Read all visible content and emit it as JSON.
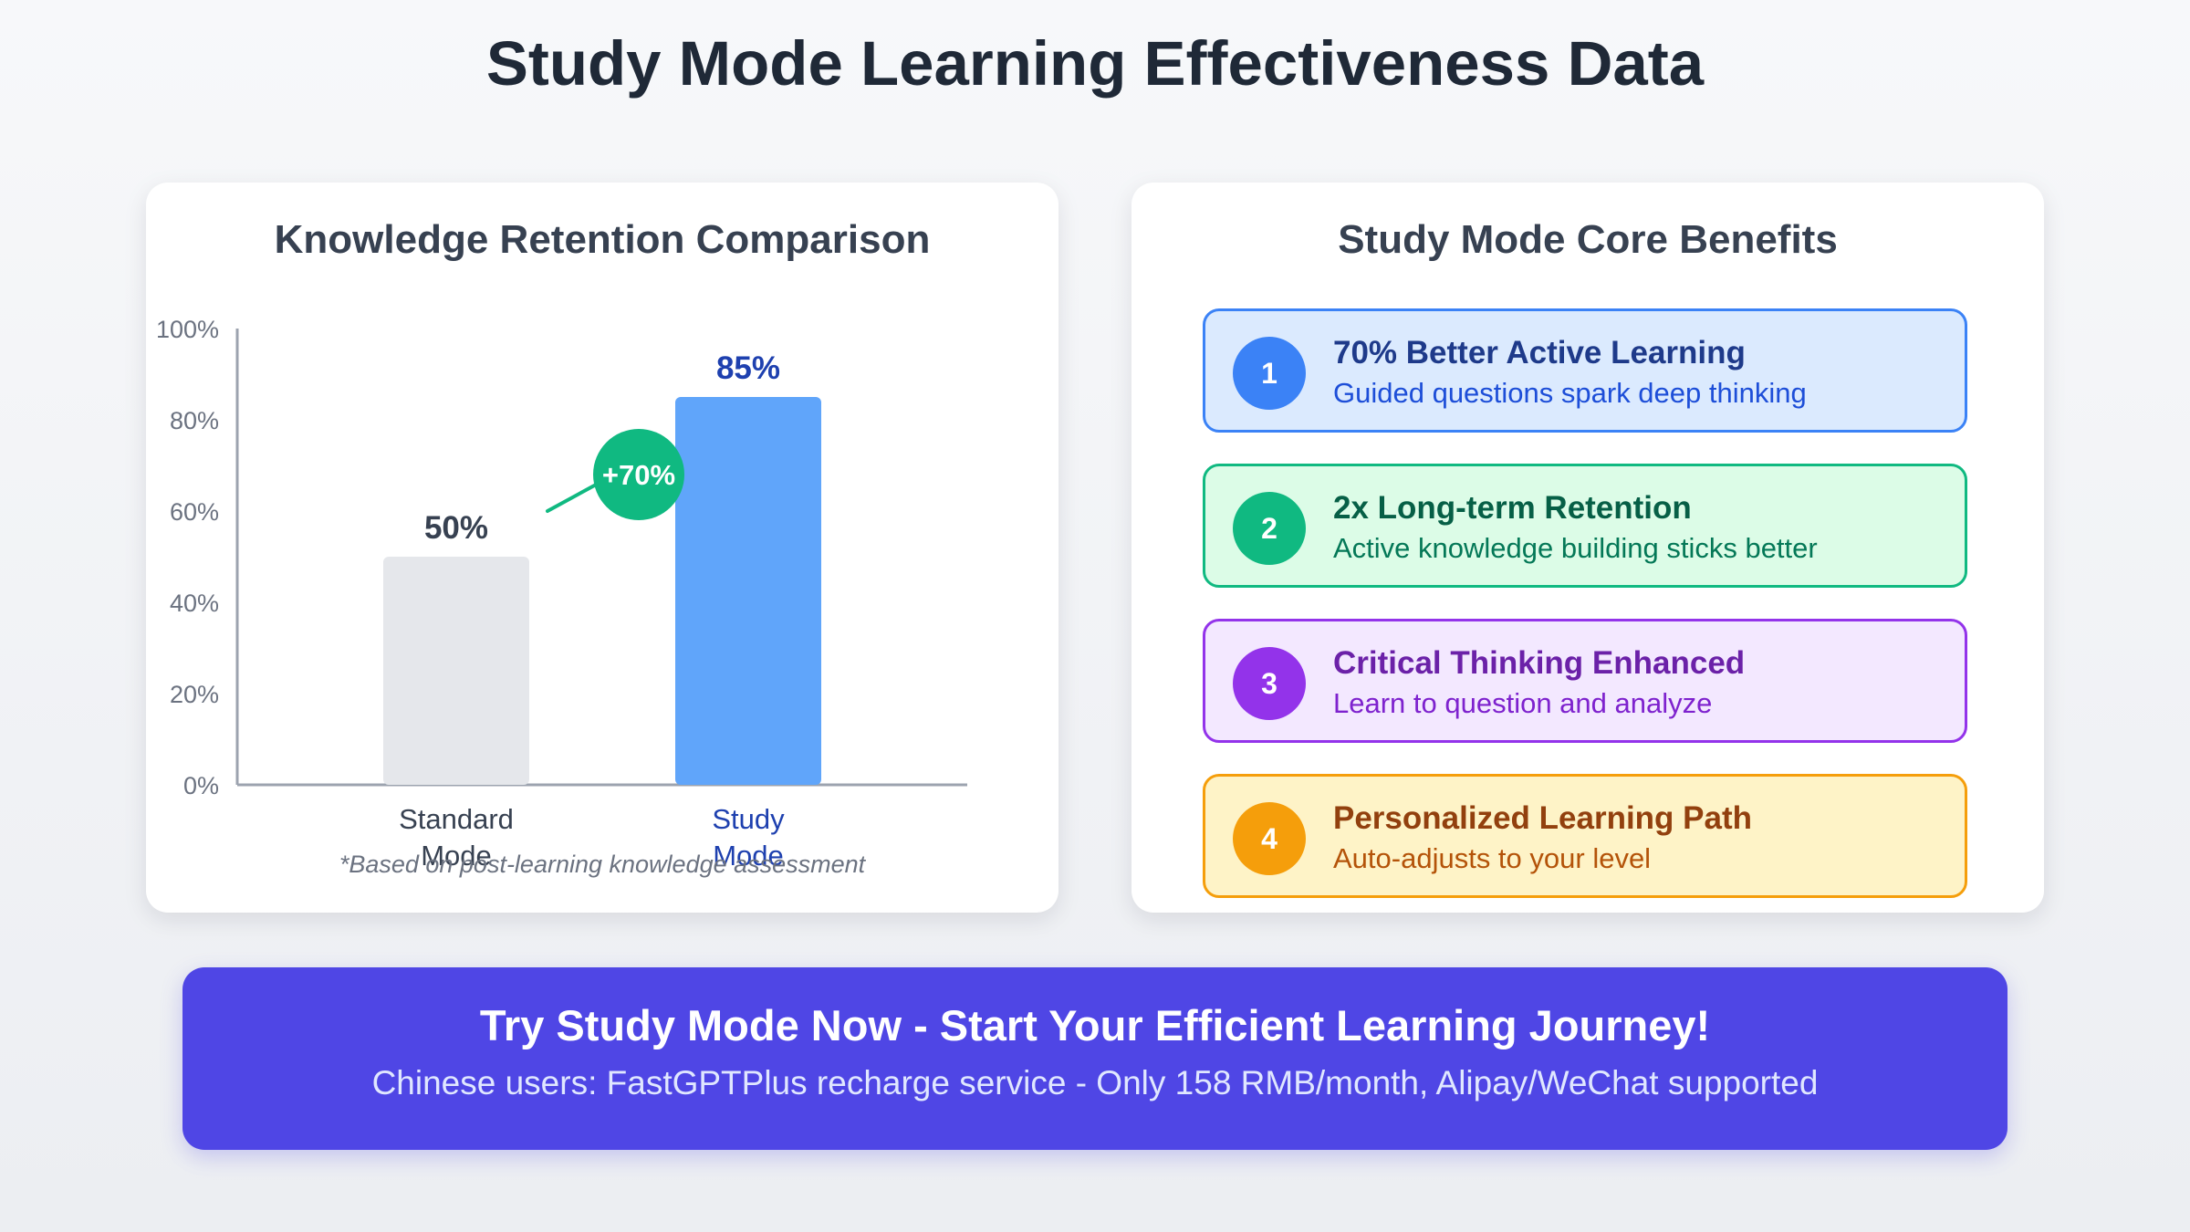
{
  "page": {
    "title": "Study Mode Learning Effectiveness Data"
  },
  "chart_data": {
    "type": "bar",
    "title": "Knowledge Retention Comparison",
    "categories": [
      "Standard Mode",
      "Study Mode"
    ],
    "values": [
      50,
      85
    ],
    "value_labels": [
      "50%",
      "85%"
    ],
    "ylim": [
      0,
      100
    ],
    "yticks": [
      0,
      20,
      40,
      60,
      80,
      100
    ],
    "ytick_labels": [
      "0%",
      "20%",
      "40%",
      "60%",
      "80%",
      "100%"
    ],
    "bar_colors": [
      "#e5e7eb",
      "#60a5fa"
    ],
    "label_colors": [
      "#374151",
      "#1e40af"
    ],
    "annotation": {
      "text": "+70%",
      "color": "#10b981"
    },
    "footnote": "*Based on post-learning knowledge assessment"
  },
  "benefits": {
    "title": "Study Mode Core Benefits",
    "items": [
      {
        "number": "1",
        "title": "70% Better Active Learning",
        "desc": "Guided questions spark deep thinking",
        "bg": "#dbeafe",
        "border": "#3b82f6",
        "circle": "#3b82f6",
        "title_color": "#1e3a8a",
        "desc_color": "#1d4ed8"
      },
      {
        "number": "2",
        "title": "2x Long-term Retention",
        "desc": "Active knowledge building sticks better",
        "bg": "#dcfce7",
        "border": "#10b981",
        "circle": "#10b981",
        "title_color": "#065f46",
        "desc_color": "#047857"
      },
      {
        "number": "3",
        "title": "Critical Thinking Enhanced",
        "desc": "Learn to question and analyze",
        "bg": "#f3e8ff",
        "border": "#9333ea",
        "circle": "#9333ea",
        "title_color": "#6b21a8",
        "desc_color": "#7e22ce"
      },
      {
        "number": "4",
        "title": "Personalized Learning Path",
        "desc": "Auto-adjusts to your level",
        "bg": "#fef3c7",
        "border": "#f59e0b",
        "circle": "#f59e0b",
        "title_color": "#92400e",
        "desc_color": "#b45309"
      }
    ]
  },
  "cta": {
    "title": "Try Study Mode Now - Start Your Efficient Learning Journey!",
    "subtitle": "Chinese users: FastGPTPlus recharge service - Only 158 RMB/month, Alipay/WeChat supported"
  }
}
